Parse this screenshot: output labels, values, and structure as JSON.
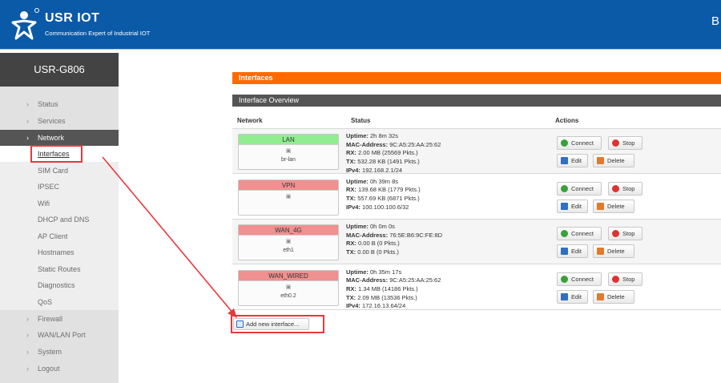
{
  "header": {
    "brand": "USR IOT",
    "tagline": "Communication Expert of Industrial IOT",
    "right_text": "B"
  },
  "sidebar": {
    "title": "USR-G806",
    "items": [
      {
        "label": "Status",
        "chevron": "›"
      },
      {
        "label": "Services",
        "chevron": "›"
      },
      {
        "label": "Network",
        "chevron": "›"
      },
      {
        "label": "Interfaces"
      },
      {
        "label": "SIM Card"
      },
      {
        "label": "IPSEC"
      },
      {
        "label": "Wifi"
      },
      {
        "label": "DHCP and DNS"
      },
      {
        "label": "AP Client"
      },
      {
        "label": "Hostnames"
      },
      {
        "label": "Static Routes"
      },
      {
        "label": "Diagnostics"
      },
      {
        "label": "QoS"
      },
      {
        "label": "Firewall",
        "chevron": "›"
      },
      {
        "label": "WAN/LAN Port",
        "chevron": "›"
      },
      {
        "label": "System",
        "chevron": "›"
      },
      {
        "label": "Logout",
        "chevron": "›"
      }
    ]
  },
  "main": {
    "section_title": "Interfaces",
    "overview_title": "Interface Overview",
    "columns": {
      "network": "Network",
      "status": "Status",
      "actions": "Actions"
    },
    "buttons": {
      "connect": "Connect",
      "stop": "Stop",
      "edit": "Edit",
      "delete": "Delete",
      "add": "Add new interface..."
    },
    "labels": {
      "uptime": "Uptime:",
      "mac": "MAC-Address:",
      "rx": "RX:",
      "tx": "TX:",
      "ipv4": "IPv4:"
    },
    "interfaces": [
      {
        "name": "LAN",
        "color": "#90ee90",
        "device": "br-lan",
        "uptime": "2h 8m 32s",
        "mac": "9C:A5:25:AA:25:62",
        "rx": "2.00 MB (25569 Pkts.)",
        "tx": "532.28 KB (1491 Pkts.)",
        "ipv4": "192.168.2.1/24"
      },
      {
        "name": "VPN",
        "color": "#f09090",
        "device": "",
        "uptime": "0h 39m 8s",
        "mac": "",
        "rx": "139.68 KB (1779 Pkts.)",
        "tx": "557.69 KB (6871 Pkts.)",
        "ipv4": "100.100.100.6/32"
      },
      {
        "name": "WAN_4G",
        "color": "#f09090",
        "device": "eth1",
        "uptime": "0h 0m 0s",
        "mac": "76:5E:B6:9C:FE:8D",
        "rx": "0.00 B (0 Pkts.)",
        "tx": "0.00 B (0 Pkts.)",
        "ipv4": ""
      },
      {
        "name": "WAN_WIRED",
        "color": "#f09090",
        "device": "eth0.2",
        "uptime": "0h 35m 17s",
        "mac": "9C:A5:25:AA:25:62",
        "rx": "1.34 MB (14186 Pkts.)",
        "tx": "2.09 MB (13536 Pkts.)",
        "ipv4": "172.16.13.64/24"
      }
    ]
  },
  "colors": {
    "header_bg": "#0b5aa8",
    "accent_orange": "#ff6a00",
    "annotation_red": "#e8383d"
  }
}
